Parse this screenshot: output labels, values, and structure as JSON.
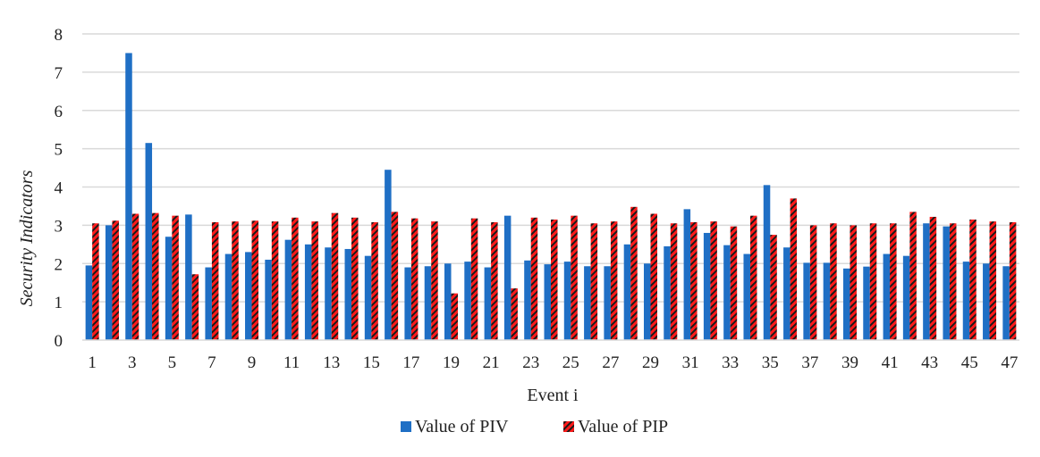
{
  "chart_data": {
    "type": "bar",
    "title": "",
    "xlabel": "Event i",
    "ylabel": "Security Indicators",
    "ylim": [
      0,
      8
    ],
    "yticks": [
      "0",
      "1",
      "2",
      "3",
      "4",
      "5",
      "6",
      "7",
      "8"
    ],
    "categories": [
      "1",
      "2",
      "3",
      "4",
      "5",
      "6",
      "7",
      "8",
      "9",
      "10",
      "11",
      "12",
      "13",
      "14",
      "15",
      "16",
      "17",
      "18",
      "19",
      "20",
      "21",
      "22",
      "23",
      "24",
      "25",
      "26",
      "27",
      "28",
      "29",
      "30",
      "31",
      "32",
      "33",
      "34",
      "35",
      "36",
      "37",
      "38",
      "39",
      "40",
      "41",
      "42",
      "43",
      "44",
      "45",
      "46",
      "47"
    ],
    "xtick_labels": [
      "1",
      "",
      "3",
      "",
      "5",
      "",
      "7",
      "",
      "9",
      "",
      "11",
      "",
      "13",
      "",
      "15",
      "",
      "17",
      "",
      "19",
      "",
      "21",
      "",
      "23",
      "",
      "25",
      "",
      "27",
      "",
      "29",
      "",
      "31",
      "",
      "33",
      "",
      "35",
      "",
      "37",
      "",
      "39",
      "",
      "41",
      "",
      "43",
      "",
      "45",
      "",
      "47"
    ],
    "grid": true,
    "legend_position": "bottom",
    "series": [
      {
        "name": "Value of PIV",
        "color": "#1f6fc5",
        "values": [
          1.95,
          3.0,
          7.5,
          5.15,
          2.7,
          3.28,
          1.9,
          2.25,
          2.3,
          2.1,
          2.62,
          2.5,
          2.42,
          2.38,
          2.2,
          4.45,
          1.9,
          1.93,
          2.0,
          2.05,
          1.9,
          3.25,
          2.08,
          1.98,
          2.05,
          1.93,
          1.93,
          2.5,
          2.0,
          2.45,
          3.42,
          2.8,
          2.48,
          2.25,
          4.05,
          2.42,
          2.02,
          2.02,
          1.87,
          1.92,
          2.25,
          2.2,
          3.05,
          2.97,
          2.05,
          2.0,
          1.93
        ]
      },
      {
        "name": "Value of PIP",
        "color": "#ff1a1a",
        "values": [
          3.05,
          3.12,
          3.3,
          3.32,
          3.25,
          1.72,
          3.08,
          3.1,
          3.12,
          3.1,
          3.2,
          3.1,
          3.32,
          3.2,
          3.08,
          3.35,
          3.18,
          3.1,
          1.22,
          3.18,
          3.08,
          1.35,
          3.2,
          3.15,
          3.25,
          3.05,
          3.1,
          3.48,
          3.3,
          3.05,
          3.08,
          3.1,
          2.97,
          3.25,
          2.75,
          3.7,
          3.0,
          3.05,
          3.0,
          3.05,
          3.05,
          3.35,
          3.22,
          3.05,
          3.15,
          3.1,
          3.08
        ]
      }
    ]
  }
}
